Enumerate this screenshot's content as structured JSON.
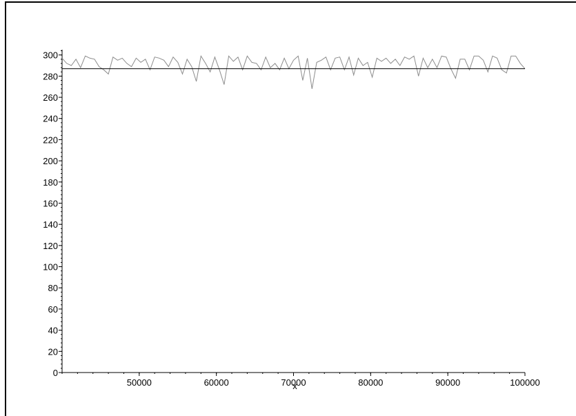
{
  "chart_data": {
    "type": "line",
    "title": "",
    "xlabel": "x",
    "ylabel": "",
    "xlim": [
      40000,
      100000
    ],
    "ylim": [
      0,
      305
    ],
    "grid": false,
    "x_ticks": [
      50000,
      60000,
      70000,
      80000,
      90000,
      100000
    ],
    "x_tick_labels": [
      "50000",
      "60000",
      "70000",
      "80000",
      "90000",
      "100000"
    ],
    "y_ticks": [
      0,
      20,
      40,
      60,
      80,
      100,
      120,
      140,
      160,
      180,
      200,
      220,
      240,
      260,
      280,
      300
    ],
    "y_tick_labels": [
      "0",
      "20",
      "40",
      "60",
      "80",
      "100",
      "120",
      "140",
      "160",
      "180",
      "200",
      "220",
      "240",
      "260",
      "280",
      "300"
    ],
    "series": [
      {
        "color": "#8c8c8c",
        "x": [
          40000,
          40600,
          41200,
          41800,
          42400,
          43000,
          43600,
          44200,
          44800,
          45400,
          46000,
          46600,
          47200,
          47800,
          48400,
          49000,
          49600,
          50200,
          50800,
          51400,
          52000,
          52600,
          53200,
          53800,
          54400,
          55000,
          55600,
          56200,
          56800,
          57400,
          58000,
          58600,
          59200,
          59800,
          60400,
          61000,
          61600,
          62200,
          62800,
          63400,
          64000,
          64600,
          65200,
          65800,
          66400,
          67000,
          67600,
          68200,
          68800,
          69400,
          70000,
          70600,
          71200,
          71800,
          72400,
          73000,
          73600,
          74200,
          74800,
          75400,
          76000,
          76600,
          77200,
          77800,
          78400,
          79000,
          79600,
          80200,
          80800,
          81400,
          82000,
          82600,
          83200,
          83800,
          84400,
          85000,
          85600,
          86200,
          86800,
          87400,
          88000,
          88600,
          89200,
          89800,
          90400,
          91000,
          91600,
          92200,
          92800,
          93400,
          94000,
          94600,
          95200,
          95800,
          96400,
          97000,
          97600,
          98200,
          98800,
          99400,
          100000
        ],
        "y": [
          297,
          292,
          290,
          296,
          288,
          299,
          297,
          296,
          289,
          286,
          282,
          298,
          295,
          297,
          292,
          289,
          297,
          293,
          296,
          286,
          298,
          297,
          295,
          289,
          298,
          293,
          282,
          296,
          289,
          275,
          299,
          292,
          284,
          298,
          286,
          272,
          299,
          294,
          298,
          286,
          299,
          293,
          292,
          286,
          298,
          288,
          292,
          286,
          297,
          287,
          295,
          299,
          276,
          297,
          268,
          293,
          295,
          298,
          286,
          297,
          298,
          286,
          298,
          281,
          297,
          290,
          293,
          279,
          297,
          294,
          297,
          292,
          296,
          290,
          298,
          296,
          299,
          280,
          297,
          288,
          296,
          288,
          299,
          298,
          287,
          278,
          296,
          296,
          286,
          299,
          299,
          295,
          284,
          299,
          297,
          286,
          283,
          299,
          299,
          292,
          287
        ]
      },
      {
        "color": "#000000",
        "x": [
          40000,
          100000
        ],
        "y": [
          287,
          287
        ]
      }
    ]
  }
}
